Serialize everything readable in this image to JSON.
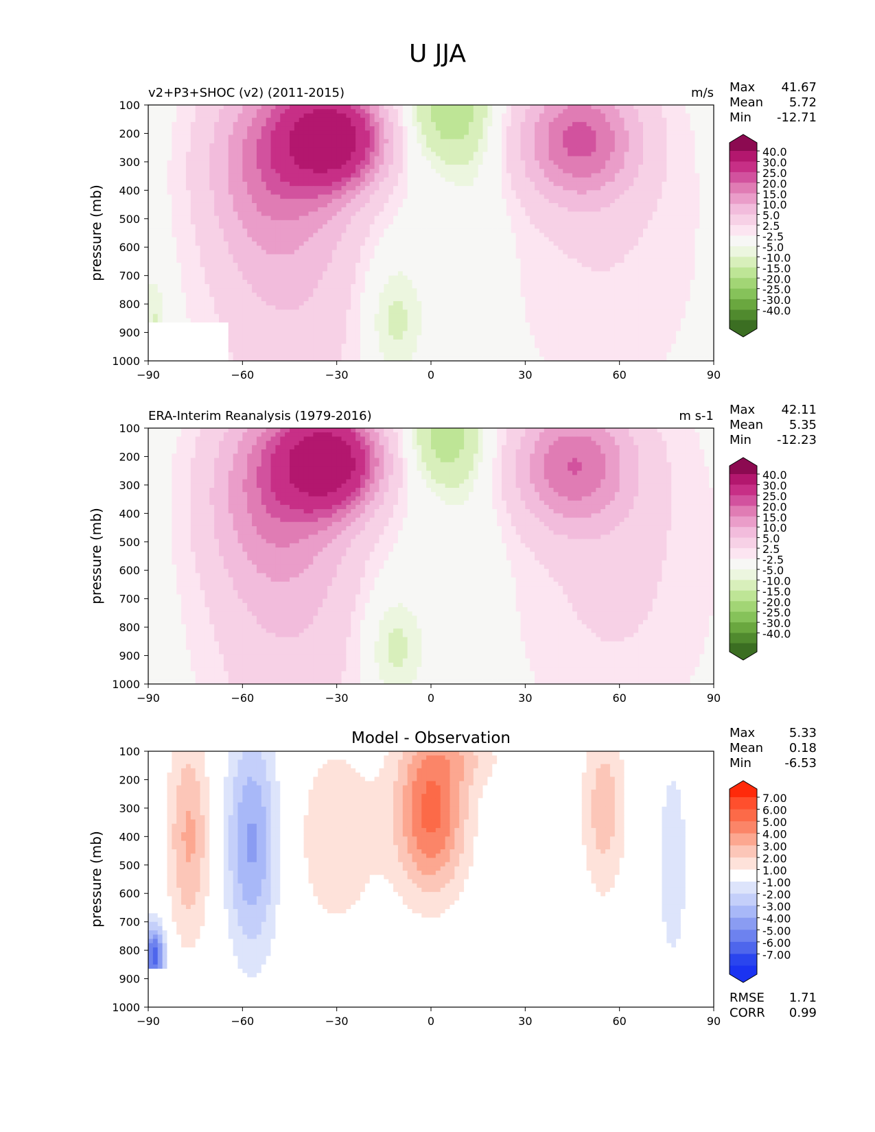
{
  "figure": {
    "title": "U JJA"
  },
  "colors": {
    "pos": [
      "#fce5f1",
      "#f7d1e6",
      "#f2bcdc",
      "#ea9dc9",
      "#e07cb4",
      "#d2529e",
      "#c72f86",
      "#b3176e",
      "#8c0a51"
    ],
    "neg": [
      "#ecf6df",
      "#d8efbb",
      "#bee596",
      "#a2d575",
      "#86c25a",
      "#6aa73f",
      "#508a2e",
      "#3b6e22"
    ],
    "neutral": "#f7f7f5",
    "diff_pos": [
      "#fee2da",
      "#fcc6b8",
      "#fca790",
      "#fb8568",
      "#fc6a48",
      "#ff4f2d",
      "#ff2a0a"
    ],
    "diff_neg": [
      "#dde4fb",
      "#c4cffa",
      "#a8b8f8",
      "#8a9cf2",
      "#6d82ef",
      "#4e66ec",
      "#2a45ee",
      "#1b33f1"
    ]
  },
  "chart_data": [
    {
      "type": "contour",
      "name": "test",
      "left_title": "v2+P3+SHOC (v2) (2011-2015)",
      "right_title": "m/s",
      "ylabel": "pressure (mb)",
      "xlim": [
        -90,
        90
      ],
      "ylim": [
        1000,
        100
      ],
      "xticks": [
        -90,
        -60,
        -30,
        0,
        30,
        60,
        90
      ],
      "xtick_labels": [
        "−90",
        "−60",
        "−30",
        "0",
        "30",
        "60",
        "90"
      ],
      "yticks": [
        100,
        200,
        300,
        400,
        500,
        600,
        700,
        800,
        900,
        1000
      ],
      "stats": {
        "Max": "41.67",
        "Mean": "5.72",
        "Min": "-12.71"
      },
      "colorbar_labels": [
        "40.0",
        "30.0",
        "25.0",
        "20.0",
        "15.0",
        "10.0",
        "5.0",
        "2.5",
        "-2.5",
        "-5.0",
        "-10.0",
        "-15.0",
        "-20.0",
        "-25.0",
        "-30.0",
        "-40.0"
      ]
    },
    {
      "type": "contour",
      "name": "reference",
      "left_title": "ERA-Interim Reanalysis (1979-2016)",
      "right_title": "m s-1",
      "ylabel": "pressure (mb)",
      "xlim": [
        -90,
        90
      ],
      "ylim": [
        1000,
        100
      ],
      "xticks": [
        -90,
        -60,
        -30,
        0,
        30,
        60,
        90
      ],
      "xtick_labels": [
        "−90",
        "−60",
        "−30",
        "0",
        "30",
        "60",
        "90"
      ],
      "yticks": [
        100,
        200,
        300,
        400,
        500,
        600,
        700,
        800,
        900,
        1000
      ],
      "stats": {
        "Max": "42.11",
        "Mean": "5.35",
        "Min": "-12.23"
      },
      "colorbar_labels": [
        "40.0",
        "30.0",
        "25.0",
        "20.0",
        "15.0",
        "10.0",
        "5.0",
        "2.5",
        "-2.5",
        "-5.0",
        "-10.0",
        "-15.0",
        "-20.0",
        "-25.0",
        "-30.0",
        "-40.0"
      ]
    },
    {
      "type": "contour",
      "name": "difference",
      "center_title": "Model - Observation",
      "ylabel": "pressure (mb)",
      "xlim": [
        -90,
        90
      ],
      "ylim": [
        1000,
        100
      ],
      "xticks": [
        -90,
        -60,
        -30,
        0,
        30,
        60,
        90
      ],
      "xtick_labels": [
        "−90",
        "−60",
        "−30",
        "0",
        "30",
        "60",
        "90"
      ],
      "yticks": [
        100,
        200,
        300,
        400,
        500,
        600,
        700,
        800,
        900,
        1000
      ],
      "stats": {
        "Max": "5.33",
        "Mean": "0.18",
        "Min": "-6.53"
      },
      "metrics": {
        "RMSE": "1.71",
        "CORR": "0.99"
      },
      "colorbar_labels": [
        "7.00",
        "6.00",
        "5.00",
        "4.00",
        "3.00",
        "2.00",
        "1.00",
        "-1.00",
        "-2.00",
        "-3.00",
        "-4.00",
        "-5.00",
        "-6.00",
        "-7.00"
      ]
    }
  ]
}
